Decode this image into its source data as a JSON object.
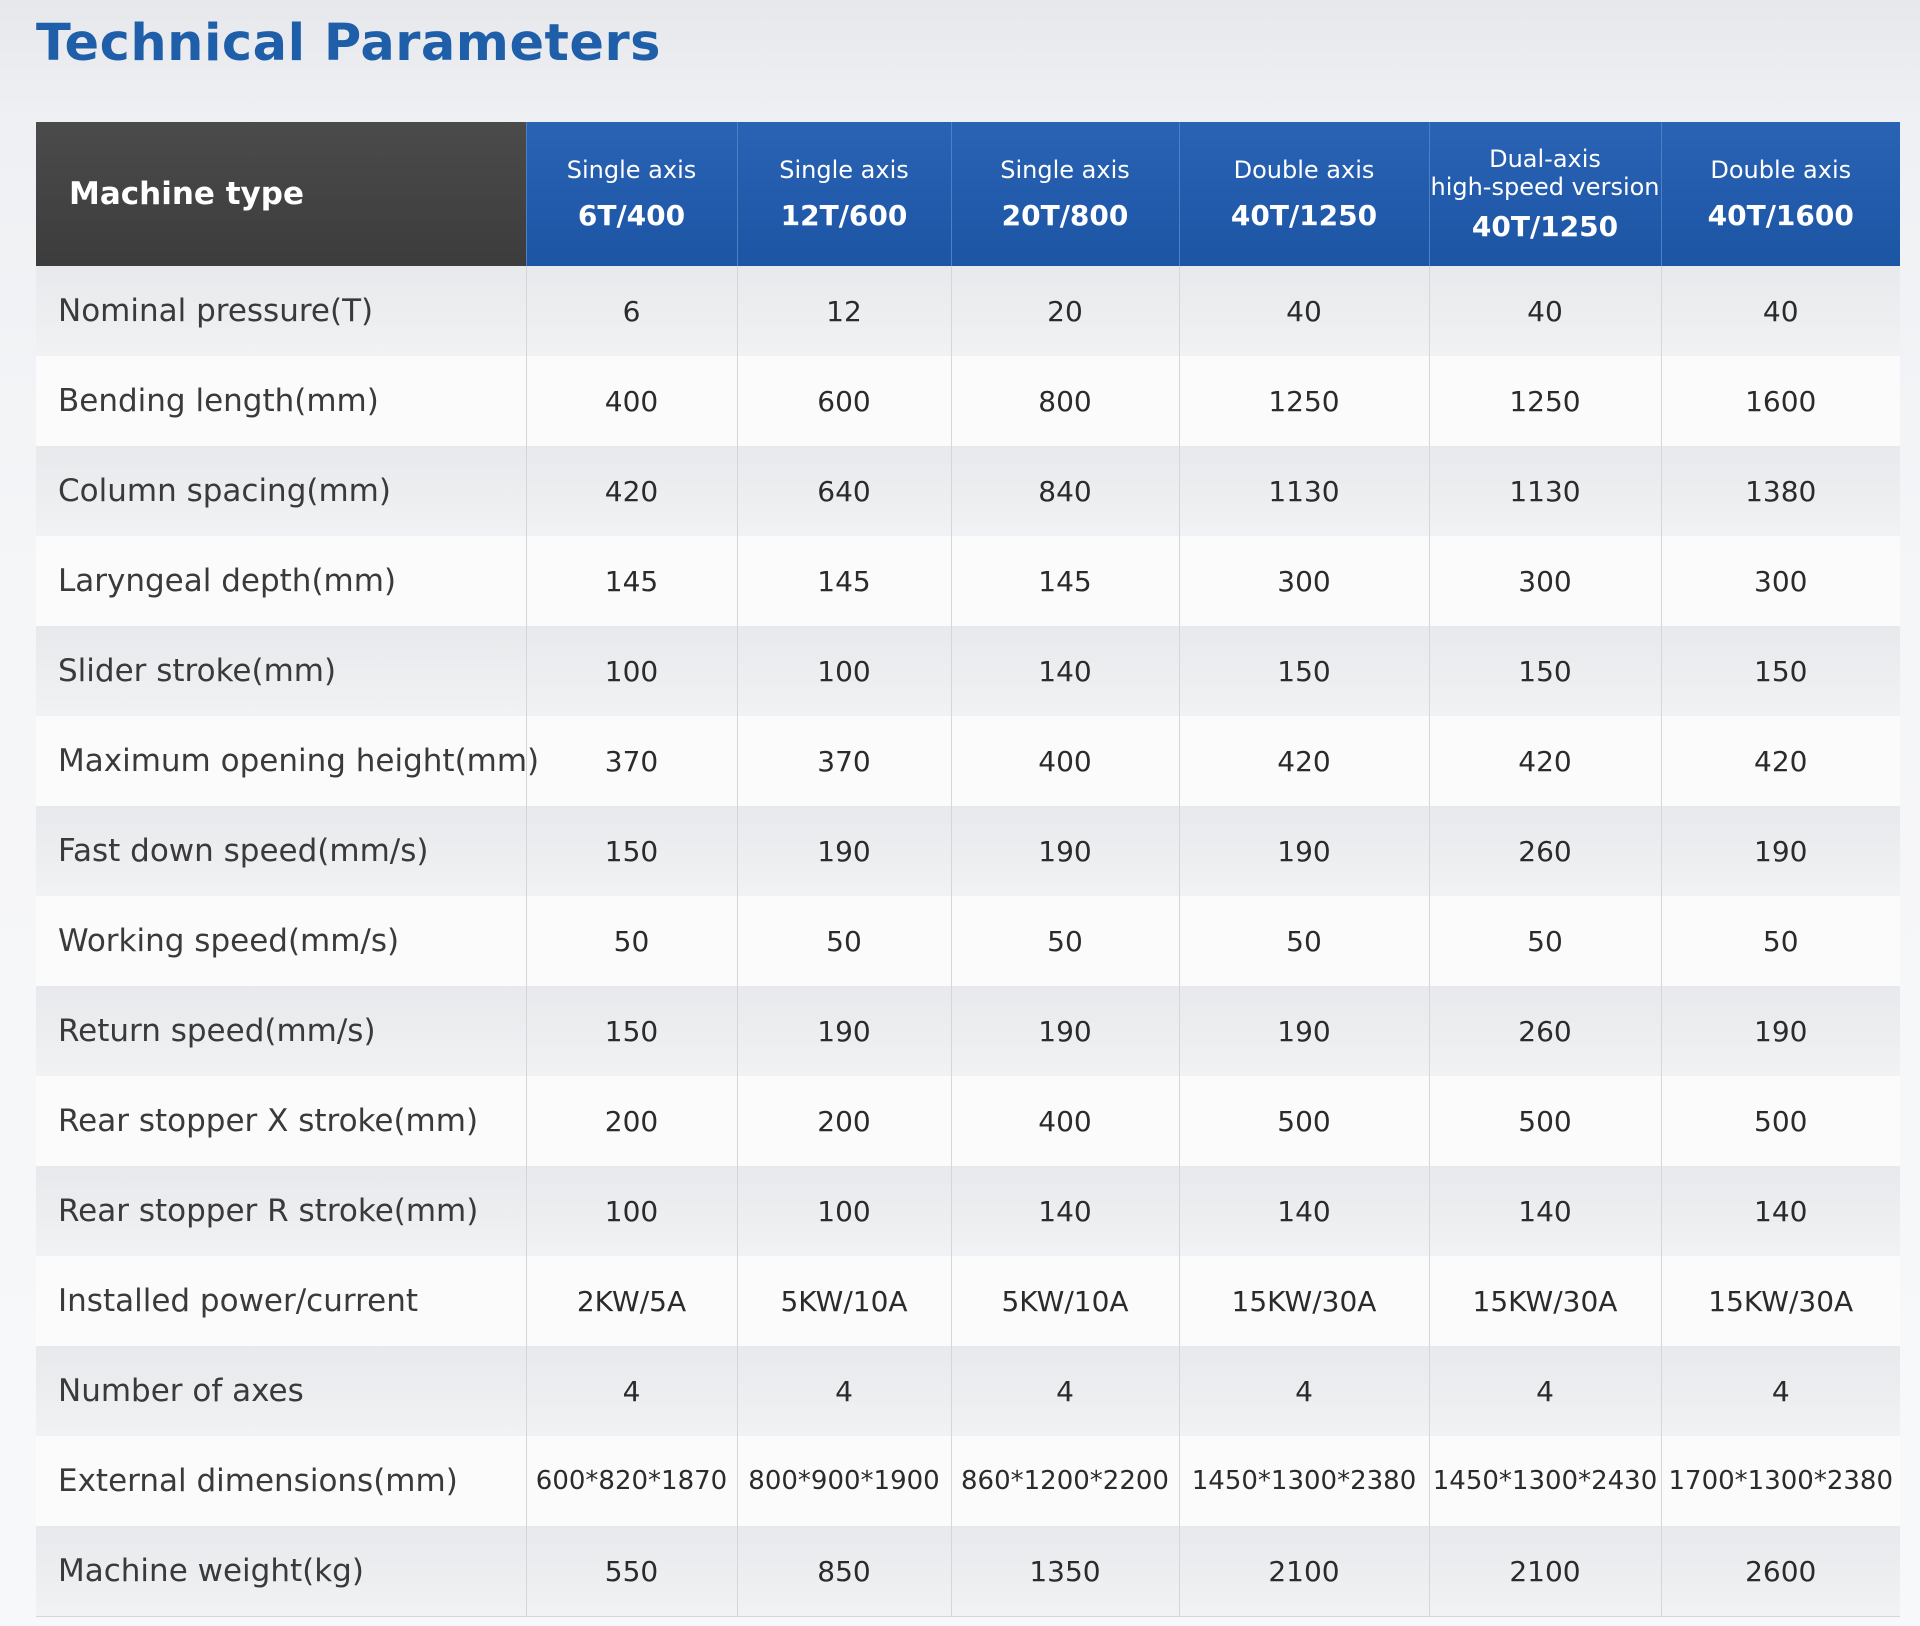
{
  "title": "Technical Parameters",
  "table": {
    "label_header": "Machine type",
    "models": [
      {
        "type": "Single axis",
        "name": "6T/400"
      },
      {
        "type": "Single axis",
        "name": "12T/600"
      },
      {
        "type": "Single axis",
        "name": "20T/800"
      },
      {
        "type": "Double axis",
        "name": "40T/1250"
      },
      {
        "type": "Dual-axis\nhigh-speed version",
        "name": "40T/1250"
      },
      {
        "type": "Double axis",
        "name": "40T/1600"
      }
    ],
    "rows": [
      {
        "label": "Nominal pressure(T)",
        "values": [
          "6",
          "12",
          "20",
          "40",
          "40",
          "40"
        ]
      },
      {
        "label": "Bending length(mm)",
        "values": [
          "400",
          "600",
          "800",
          "1250",
          "1250",
          "1600"
        ]
      },
      {
        "label": "Column spacing(mm)",
        "values": [
          "420",
          "640",
          "840",
          "1130",
          "1130",
          "1380"
        ]
      },
      {
        "label": "Laryngeal depth(mm)",
        "values": [
          "145",
          "145",
          "145",
          "300",
          "300",
          "300"
        ]
      },
      {
        "label": "Slider stroke(mm)",
        "values": [
          "100",
          "100",
          "140",
          "150",
          "150",
          "150"
        ]
      },
      {
        "label": "Maximum opening height(mm)",
        "values": [
          "370",
          "370",
          "400",
          "420",
          "420",
          "420"
        ]
      },
      {
        "label": "Fast down speed(mm/s)",
        "values": [
          "150",
          "190",
          "190",
          "190",
          "260",
          "190"
        ]
      },
      {
        "label": "Working speed(mm/s)",
        "values": [
          "50",
          "50",
          "50",
          "50",
          "50",
          "50"
        ]
      },
      {
        "label": "Return speed(mm/s)",
        "values": [
          "150",
          "190",
          "190",
          "190",
          "260",
          "190"
        ]
      },
      {
        "label": "Rear stopper X stroke(mm)",
        "values": [
          "200",
          "200",
          "400",
          "500",
          "500",
          "500"
        ]
      },
      {
        "label": "Rear stopper R stroke(mm)",
        "values": [
          "100",
          "100",
          "140",
          "140",
          "140",
          "140"
        ]
      },
      {
        "label": "Installed power/current",
        "values": [
          "2KW/5A",
          "5KW/10A",
          "5KW/10A",
          "15KW/30A",
          "15KW/30A",
          "15KW/30A"
        ]
      },
      {
        "label": "Number of axes",
        "values": [
          "4",
          "4",
          "4",
          "4",
          "4",
          "4"
        ]
      },
      {
        "label": "External dimensions(mm)",
        "values": [
          "600*820*1870",
          "800*900*1900",
          "860*1200*2200",
          "1450*1300*2380",
          "1450*1300*2430",
          "1700*1300*2380"
        ]
      },
      {
        "label": "Machine weight(kg)",
        "values": [
          "550",
          "850",
          "1350",
          "2100",
          "2100",
          "2600"
        ]
      }
    ]
  }
}
